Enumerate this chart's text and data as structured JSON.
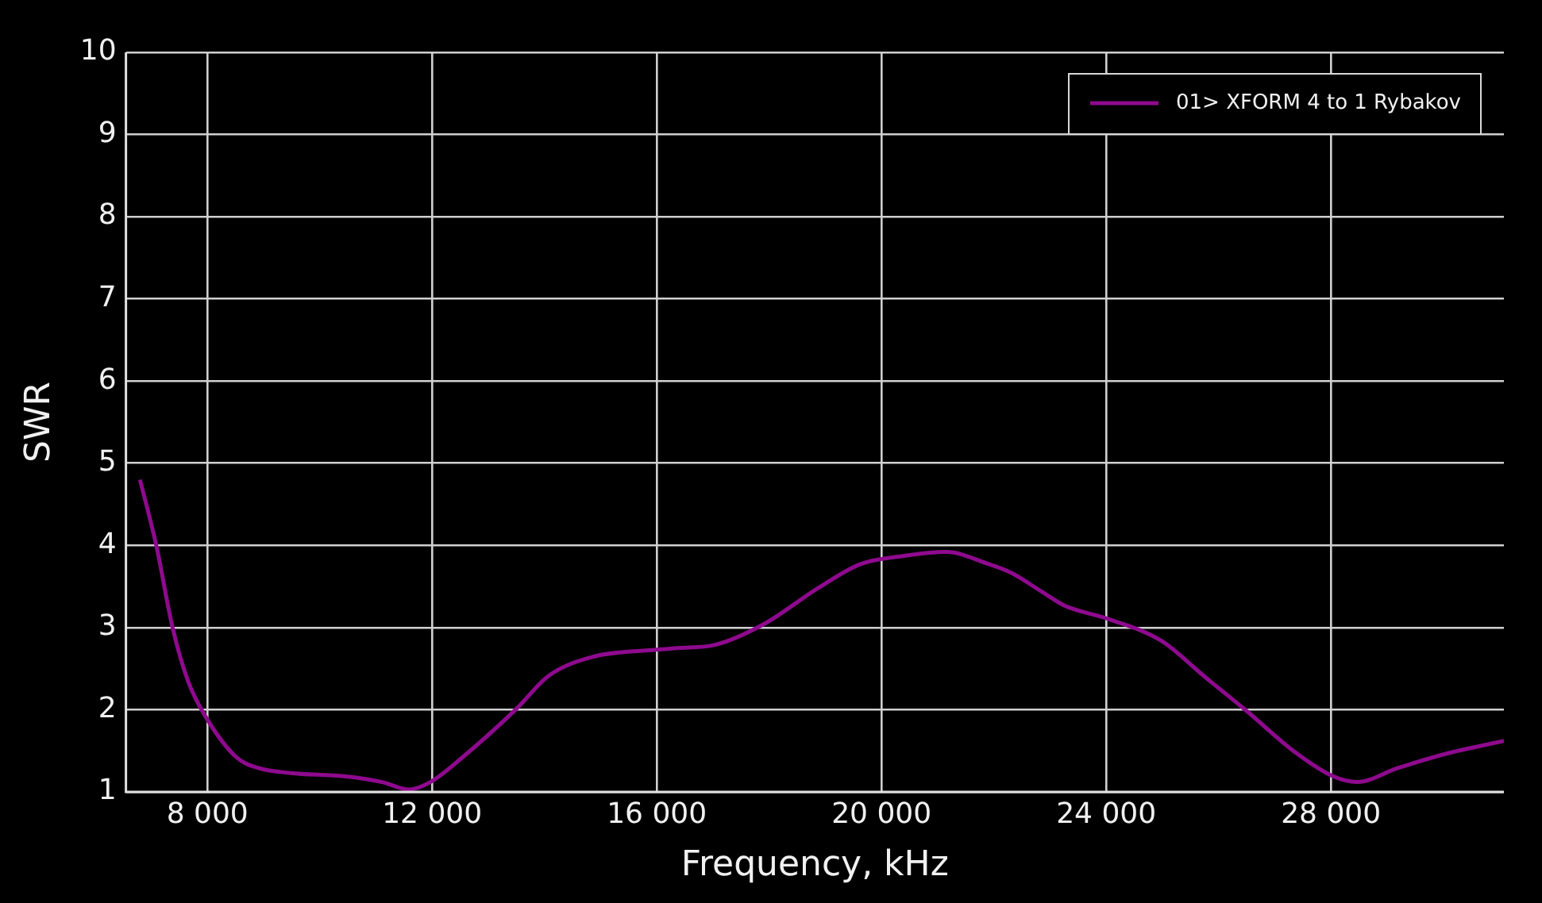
{
  "chart_data": {
    "type": "line",
    "xlabel": "Frequency, kHz",
    "ylabel": "SWR",
    "xlim": [
      6550,
      31080
    ],
    "ylim": [
      1,
      10
    ],
    "xticks": [
      {
        "value": 8000,
        "label": "8 000"
      },
      {
        "value": 12000,
        "label": "12 000"
      },
      {
        "value": 16000,
        "label": "16 000"
      },
      {
        "value": 20000,
        "label": "20 000"
      },
      {
        "value": 24000,
        "label": "24 000"
      },
      {
        "value": 28000,
        "label": "28 000"
      }
    ],
    "yticks": [
      1,
      2,
      3,
      4,
      5,
      6,
      7,
      8,
      9,
      10
    ],
    "grid": true,
    "legend": "top right",
    "marker": "none",
    "line_style": "solid",
    "series": [
      {
        "name": "01> XFORM 4 to 1 Rybakov",
        "color": "#8e0a8e",
        "x": [
          6800,
          7090,
          7380,
          7660,
          8000,
          8520,
          8910,
          9480,
          10440,
          11110,
          11590,
          11970,
          12540,
          13500,
          14070,
          14840,
          15990,
          16370,
          17040,
          17900,
          18850,
          19620,
          20380,
          21150,
          21920,
          22300,
          22870,
          23250,
          24060,
          24980,
          25740,
          26510,
          27370,
          28040,
          28470,
          29190,
          30140,
          31080
        ],
        "values": [
          4.8,
          4.0,
          3.0,
          2.34,
          1.88,
          1.42,
          1.29,
          1.23,
          1.19,
          1.12,
          1.03,
          1.12,
          1.42,
          2.01,
          2.41,
          2.64,
          2.73,
          2.75,
          2.79,
          3.04,
          3.47,
          3.77,
          3.87,
          3.92,
          3.77,
          3.67,
          3.43,
          3.27,
          3.1,
          2.84,
          2.41,
          1.98,
          1.48,
          1.19,
          1.12,
          1.29,
          1.48,
          1.62
        ]
      }
    ]
  }
}
